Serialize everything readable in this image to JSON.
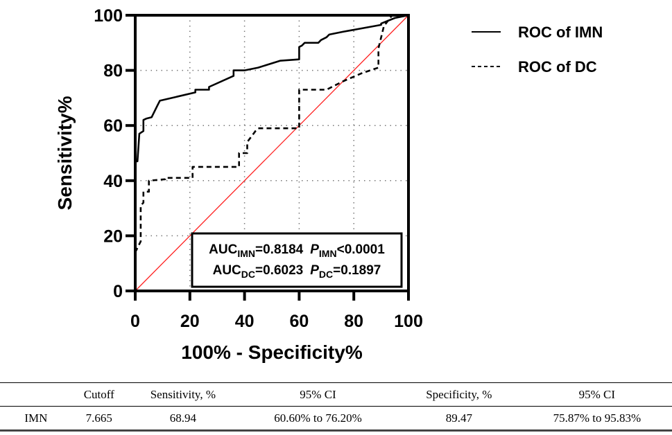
{
  "chart_data": {
    "type": "line",
    "title": "",
    "xlabel": "100% - Specificity%",
    "ylabel": "Sensitivity%",
    "xlim": [
      0,
      100
    ],
    "ylim": [
      0,
      100
    ],
    "x_ticks": [
      "0",
      "20",
      "40",
      "60",
      "80",
      "100"
    ],
    "y_ticks": [
      "0",
      "20",
      "40",
      "60",
      "80",
      "100"
    ],
    "grid": "dotted",
    "legend_position": "right",
    "series": [
      {
        "name": "ROC of IMN",
        "style": "solid",
        "color": "#000000",
        "points": [
          [
            0,
            47
          ],
          [
            0.8,
            47
          ],
          [
            1.5,
            57
          ],
          [
            3,
            58
          ],
          [
            3,
            62
          ],
          [
            4,
            62.5
          ],
          [
            6,
            63
          ],
          [
            8,
            67
          ],
          [
            9,
            69
          ],
          [
            22,
            72
          ],
          [
            22,
            73
          ],
          [
            27,
            73
          ],
          [
            27,
            74
          ],
          [
            36,
            78
          ],
          [
            36,
            80
          ],
          [
            40,
            80
          ],
          [
            45,
            81
          ],
          [
            53,
            83.5
          ],
          [
            60,
            84
          ],
          [
            60,
            88.5
          ],
          [
            61,
            89
          ],
          [
            62,
            90
          ],
          [
            67,
            90
          ],
          [
            68,
            91
          ],
          [
            70,
            92
          ],
          [
            71,
            93
          ],
          [
            76,
            94
          ],
          [
            90,
            96.5
          ],
          [
            90,
            97
          ],
          [
            95,
            99
          ],
          [
            100,
            100
          ]
        ]
      },
      {
        "name": "ROC of DC",
        "style": "dashed",
        "color": "#000000",
        "points": [
          [
            0,
            14
          ],
          [
            2,
            18
          ],
          [
            2,
            31
          ],
          [
            3,
            32
          ],
          [
            3,
            36
          ],
          [
            5,
            36
          ],
          [
            5,
            40
          ],
          [
            11,
            40.5
          ],
          [
            11,
            41
          ],
          [
            21,
            41
          ],
          [
            21,
            45
          ],
          [
            38,
            45
          ],
          [
            38,
            50
          ],
          [
            41,
            50
          ],
          [
            41,
            54
          ],
          [
            44,
            58
          ],
          [
            45,
            59
          ],
          [
            60,
            59
          ],
          [
            60,
            73
          ],
          [
            70,
            73
          ],
          [
            76,
            76
          ],
          [
            83,
            79
          ],
          [
            89,
            81
          ],
          [
            89,
            88
          ],
          [
            91,
            96
          ],
          [
            94,
            100
          ]
        ]
      },
      {
        "name": "Reference line",
        "style": "solid",
        "color": "#ff2020",
        "points": [
          [
            0,
            0
          ],
          [
            100,
            100
          ]
        ]
      }
    ],
    "annotations": {
      "line1": {
        "auc_label": "AUC",
        "auc_sub": "IMN",
        "auc_value": "=0.8184",
        "p_label": "P",
        "p_sub": "IMN",
        "p_value": "<0.0001"
      },
      "line2": {
        "auc_label": "AUC",
        "auc_sub": "DC",
        "auc_value": "=0.6023",
        "p_label": "P",
        "p_sub": "DC",
        "p_value": "=0.1897"
      }
    }
  },
  "legend": {
    "items": [
      {
        "label": "ROC of IMN",
        "style": "solid"
      },
      {
        "label": "ROC of DC",
        "style": "dashed"
      }
    ]
  },
  "table": {
    "headers": [
      "",
      "Cutoff",
      "Sensitivity, %",
      "95% CI",
      "Specificity, %",
      "95% CI"
    ],
    "rows": [
      [
        "IMN",
        "7.665",
        "68.94",
        "60.60% to 76.20%",
        "89.47",
        "75.87% to 95.83%"
      ]
    ]
  }
}
